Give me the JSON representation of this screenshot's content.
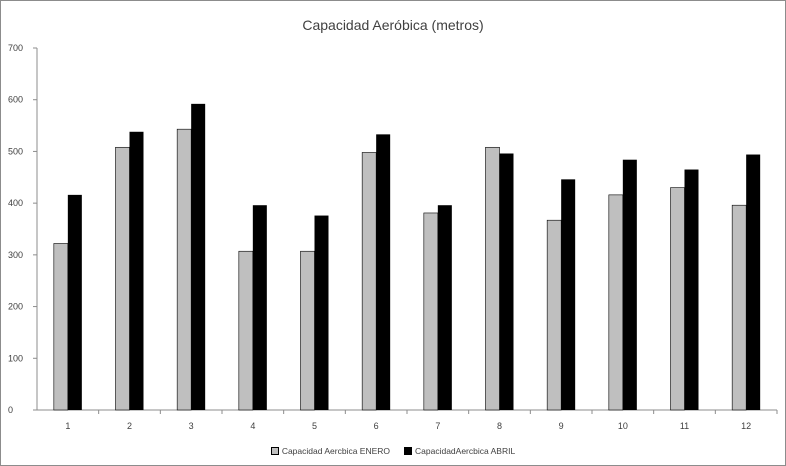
{
  "chart_data": {
    "type": "bar",
    "title": "Capacidad Aeróbica (metros)",
    "xlabel": "",
    "ylabel": "",
    "ylim": [
      0,
      700
    ],
    "yticks": [
      0,
      100,
      200,
      300,
      400,
      500,
      600,
      700
    ],
    "categories": [
      "1",
      "2",
      "3",
      "4",
      "5",
      "6",
      "7",
      "8",
      "9",
      "10",
      "11",
      "12"
    ],
    "series": [
      {
        "name": "Capacidad Aercbica ENERO",
        "color": "#bfbfbf",
        "values": [
          322,
          508,
          543,
          307,
          307,
          498,
          381,
          508,
          367,
          416,
          430,
          396
        ]
      },
      {
        "name": "CapacidadAercbica ABRIL",
        "color": "#000000",
        "values": [
          416,
          538,
          592,
          396,
          376,
          533,
          396,
          496,
          446,
          484,
          465,
          494
        ]
      }
    ],
    "grid": false,
    "legend_position": "bottom"
  }
}
